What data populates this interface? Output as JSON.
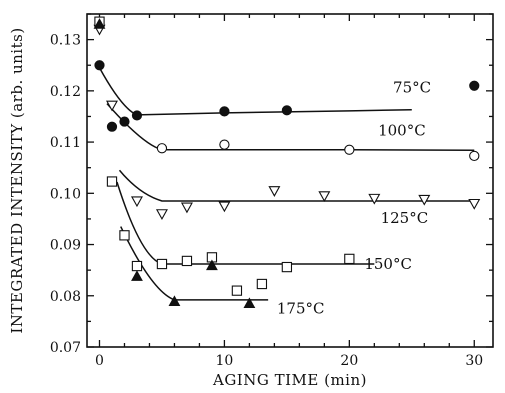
{
  "chart_data": {
    "type": "scatter",
    "xlabel": "AGING TIME",
    "xunit": "(min)",
    "ylabel": "INTEGRATED INTENSITY",
    "yunit": "(arb. units)",
    "xlim": [
      -1,
      31.5
    ],
    "ylim": [
      0.07,
      0.135
    ],
    "x_ticks": [
      "0",
      "10",
      "20",
      "30"
    ],
    "y_ticks": [
      "0.07",
      "0.08",
      "0.09",
      "0.10",
      "0.11",
      "0.12",
      "0.13"
    ],
    "y_tick_values": [
      0.07,
      0.08,
      0.09,
      0.1,
      0.11,
      0.12,
      0.13
    ],
    "x_tick_values": [
      0,
      10,
      20,
      30
    ],
    "grid": false,
    "series": [
      {
        "name": "75°C",
        "marker": "filled-circle",
        "points": [
          [
            0,
            0.125
          ],
          [
            1,
            0.113
          ],
          [
            2,
            0.114
          ],
          [
            3,
            0.1152
          ],
          [
            10,
            0.116
          ],
          [
            15,
            0.1162
          ],
          [
            30,
            0.121
          ]
        ],
        "fit": [
          [
            3,
            0.1153
          ],
          [
            10,
            0.1157
          ],
          [
            20,
            0.1161
          ],
          [
            25,
            0.1163
          ]
        ]
      },
      {
        "name": "100°C",
        "marker": "open-circle",
        "points": [
          [
            5,
            0.1088
          ],
          [
            10,
            0.1095
          ],
          [
            20,
            0.1085
          ],
          [
            30,
            0.1073
          ]
        ],
        "fit": [
          [
            5,
            0.1085
          ],
          [
            10,
            0.1085
          ],
          [
            20,
            0.1085
          ],
          [
            30,
            0.1084
          ]
        ]
      },
      {
        "name": "125°C",
        "marker": "open-triangle-down",
        "points": [
          [
            0,
            0.132
          ],
          [
            1,
            0.1172
          ],
          [
            3,
            0.0985
          ],
          [
            5,
            0.096
          ],
          [
            7,
            0.0973
          ],
          [
            10,
            0.0975
          ],
          [
            14,
            0.1005
          ],
          [
            18,
            0.0995
          ],
          [
            22,
            0.099
          ],
          [
            26,
            0.0988
          ],
          [
            30,
            0.098
          ]
        ],
        "fit": [
          [
            5,
            0.0985
          ],
          [
            10,
            0.0985
          ],
          [
            20,
            0.0985
          ],
          [
            30,
            0.0985
          ]
        ]
      },
      {
        "name": "150°C",
        "marker": "open-square",
        "points": [
          [
            0,
            0.1335
          ],
          [
            1,
            0.1023
          ],
          [
            2,
            0.0918
          ],
          [
            3,
            0.0858
          ],
          [
            5,
            0.0862
          ],
          [
            7,
            0.0868
          ],
          [
            9,
            0.0875
          ],
          [
            11,
            0.081
          ],
          [
            13,
            0.0823
          ],
          [
            15,
            0.0856
          ],
          [
            20,
            0.0872
          ]
        ],
        "fit": [
          [
            5,
            0.0862
          ],
          [
            10,
            0.0862
          ],
          [
            15,
            0.0862
          ],
          [
            22,
            0.0862
          ]
        ]
      },
      {
        "name": "175°C",
        "marker": "filled-triangle-up",
        "points": [
          [
            0,
            0.133
          ],
          [
            3,
            0.0838
          ],
          [
            6,
            0.0789
          ],
          [
            9,
            0.0859
          ],
          [
            12,
            0.0785
          ]
        ],
        "fit": [
          [
            6,
            0.0792
          ],
          [
            10,
            0.0792
          ],
          [
            13.5,
            0.0792
          ]
        ]
      }
    ],
    "labels": [
      {
        "text": "75°C",
        "x": 23.5,
        "y": 0.1197
      },
      {
        "text": "100°C",
        "x": 22.3,
        "y": 0.1113
      },
      {
        "text": "125°C",
        "x": 22.5,
        "y": 0.0942
      },
      {
        "text": "150°C",
        "x": 21.2,
        "y": 0.0852
      },
      {
        "text": "175°C",
        "x": 14.2,
        "y": 0.0765
      }
    ]
  }
}
